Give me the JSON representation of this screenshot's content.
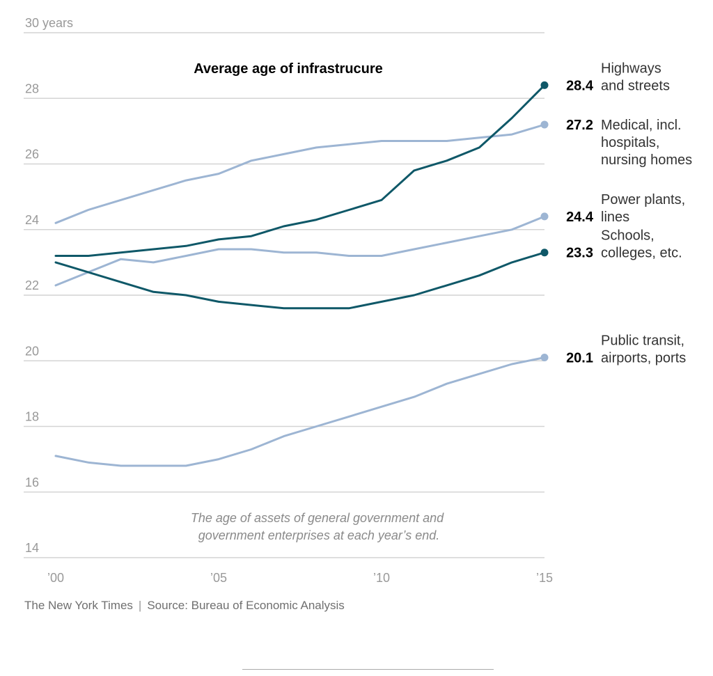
{
  "chart_data": {
    "type": "line",
    "title": "Average age of infrastrucure",
    "note": [
      "The age of assets of general government and",
      "government enterprises at each year’s end."
    ],
    "x": [
      2000,
      2001,
      2002,
      2003,
      2004,
      2005,
      2006,
      2007,
      2008,
      2009,
      2010,
      2011,
      2012,
      2013,
      2014,
      2015
    ],
    "xlim": [
      2000,
      2015
    ],
    "ylim": [
      14,
      30
    ],
    "y_ticks": [
      {
        "value": 30,
        "label": "30 years"
      },
      {
        "value": 28,
        "label": "28"
      },
      {
        "value": 26,
        "label": "26"
      },
      {
        "value": 24,
        "label": "24"
      },
      {
        "value": 22,
        "label": "22"
      },
      {
        "value": 20,
        "label": "20"
      },
      {
        "value": 18,
        "label": "18"
      },
      {
        "value": 16,
        "label": "16"
      },
      {
        "value": 14,
        "label": "14"
      }
    ],
    "x_ticks": [
      {
        "value": 2000,
        "label": "’00"
      },
      {
        "value": 2005,
        "label": "’05"
      },
      {
        "value": 2010,
        "label": "’10"
      },
      {
        "value": 2015,
        "label": "’15"
      }
    ],
    "grid": true,
    "series": [
      {
        "name": [
          "Medical, incl.",
          "hospitals,",
          "nursing homes"
        ],
        "end_label": "27.2",
        "color": "#9db5d3",
        "values": [
          24.2,
          24.6,
          24.9,
          25.2,
          25.5,
          25.7,
          26.1,
          26.3,
          26.5,
          26.6,
          26.7,
          26.7,
          26.7,
          26.8,
          26.9,
          27.2
        ]
      },
      {
        "name": [
          "Power plants,",
          "lines"
        ],
        "end_label": "24.4",
        "color": "#9db5d3",
        "values": [
          22.3,
          22.7,
          23.1,
          23.0,
          23.2,
          23.4,
          23.4,
          23.3,
          23.3,
          23.2,
          23.2,
          23.4,
          23.6,
          23.8,
          24.0,
          24.4
        ]
      },
      {
        "name": [
          "Public transit,",
          "airports, ports"
        ],
        "end_label": "20.1",
        "color": "#9db5d3",
        "values": [
          17.1,
          16.9,
          16.8,
          16.8,
          16.8,
          17.0,
          17.3,
          17.7,
          18.0,
          18.3,
          18.6,
          18.9,
          19.3,
          19.6,
          19.9,
          20.1
        ]
      },
      {
        "name": [
          "Highways",
          "and streets"
        ],
        "end_label": "28.4",
        "color": "#0f5868",
        "values": [
          23.2,
          23.2,
          23.3,
          23.4,
          23.5,
          23.7,
          23.8,
          24.1,
          24.3,
          24.6,
          24.9,
          25.8,
          26.1,
          26.5,
          27.4,
          28.4
        ]
      },
      {
        "name": [
          "Schools,",
          "colleges, etc."
        ],
        "end_label": "23.3",
        "color": "#0f5868",
        "values": [
          23.0,
          22.7,
          22.4,
          22.1,
          22.0,
          21.8,
          21.7,
          21.6,
          21.6,
          21.6,
          21.8,
          22.0,
          22.3,
          22.6,
          23.0,
          23.3
        ]
      }
    ]
  },
  "footer": {
    "publisher": "The New York Times",
    "separator": "|",
    "source": "Source: Bureau of Economic Analysis"
  }
}
